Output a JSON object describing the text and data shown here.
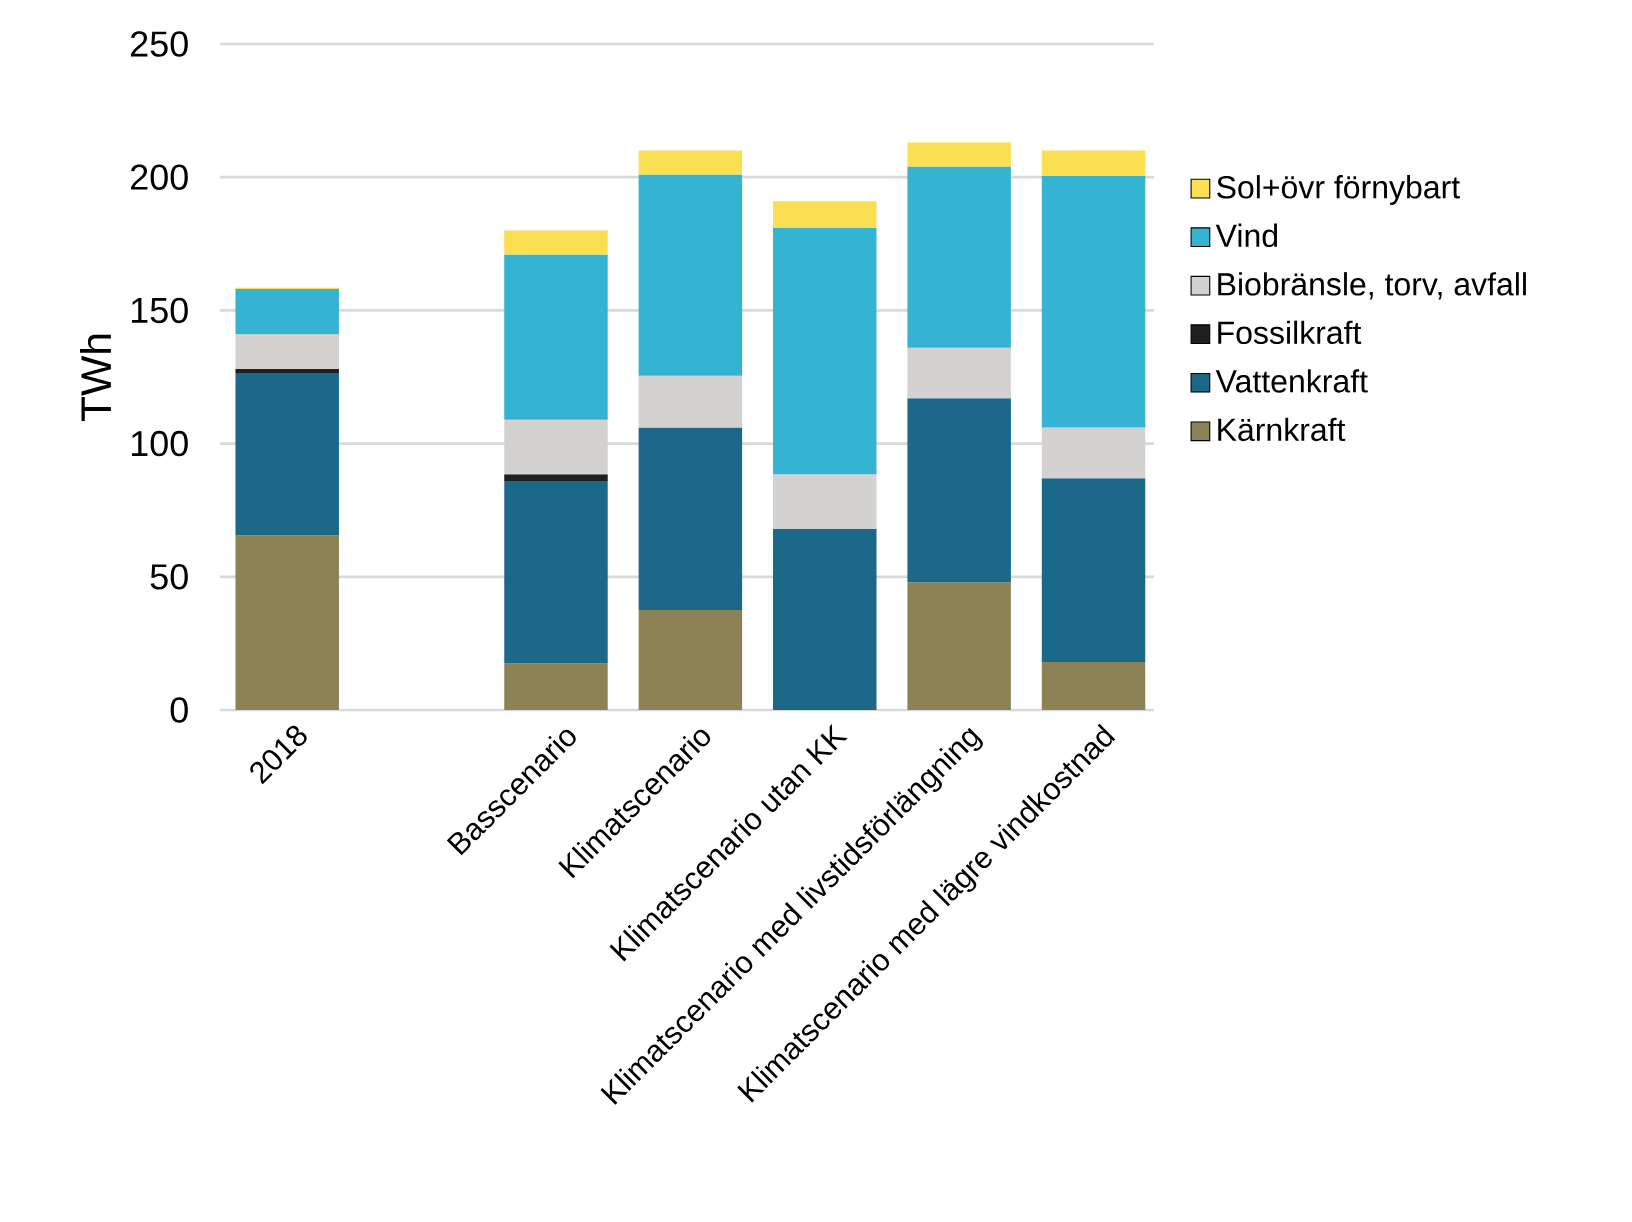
{
  "chart_data": {
    "type": "bar",
    "stacked": true,
    "ylabel": "TWh",
    "categories": [
      "2018",
      null,
      "Basscenario",
      "Klimatscenario",
      "Klimatscenario utan KK",
      "Klimatscenario med livstidsförlängning",
      "Klimatscenario med lägre vindkostnad"
    ],
    "series": [
      {
        "name": "Kärnkraft",
        "color": "#8b8256",
        "values": [
          65.5,
          null,
          17.5,
          37.5,
          null,
          48,
          18
        ]
      },
      {
        "name": "Vattenkraft",
        "color": "#1b6889",
        "values": [
          61,
          null,
          68.5,
          68.5,
          68,
          69,
          69
        ]
      },
      {
        "name": "Fossilkraft",
        "color": "#1f1f1f",
        "values": [
          1.5,
          null,
          2.5,
          null,
          null,
          null,
          null
        ]
      },
      {
        "name": "Biobränsle, torv, avfall",
        "color": "#d3d2d0",
        "values": [
          13,
          null,
          20.5,
          19.5,
          20.5,
          19,
          19
        ]
      },
      {
        "name": "Vind",
        "color": "#35b3d3",
        "values": [
          17,
          null,
          62,
          75.5,
          92.5,
          68,
          94.5
        ]
      },
      {
        "name": "Sol+övr förnybart",
        "color": "#fbdf52",
        "values": [
          0.5,
          null,
          9,
          9,
          10,
          9,
          9.5
        ]
      }
    ],
    "ylim": [
      0,
      250
    ],
    "yticks": [
      0,
      50,
      100,
      150,
      200,
      250
    ],
    "grid": "y",
    "legend": "right"
  }
}
